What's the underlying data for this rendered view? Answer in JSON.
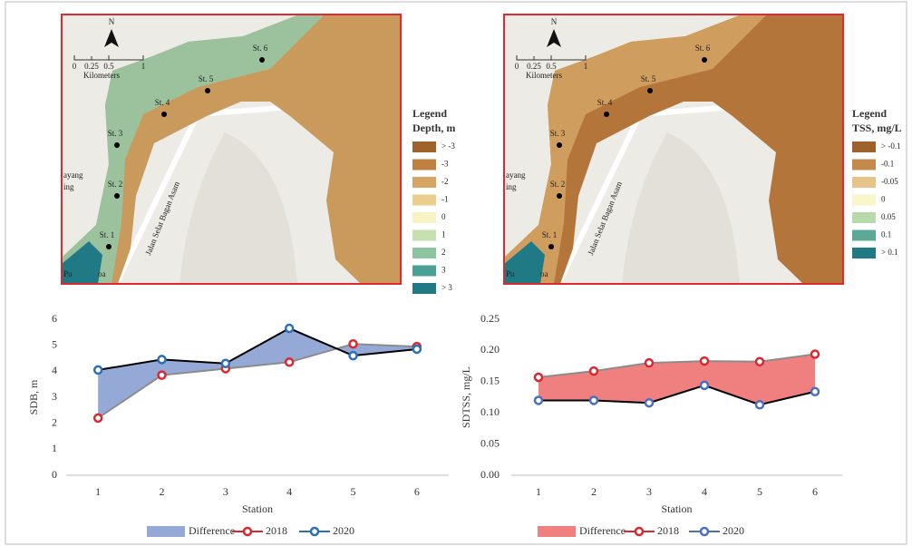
{
  "maps": [
    {
      "legend_title": "Legend",
      "legend_subtitle": "Depth, m",
      "legend_items": [
        {
          "label": "> -3",
          "color": "#a0622d"
        },
        {
          "label": "-3",
          "color": "#c0803f"
        },
        {
          "label": "-2",
          "color": "#d6a463"
        },
        {
          "label": "-1",
          "color": "#ebcd8e"
        },
        {
          "label": "0",
          "color": "#f8f3c4"
        },
        {
          "label": "1",
          "color": "#c7e0b1"
        },
        {
          "label": "2",
          "color": "#8dc4a0"
        },
        {
          "label": "3",
          "color": "#4aa193"
        },
        {
          "label": "> 3",
          "color": "#1f7a86"
        }
      ],
      "stations": [
        "St. 1",
        "St. 2",
        "St. 3",
        "St. 4",
        "St. 5",
        "St. 6"
      ],
      "north": "N",
      "scale_labels": [
        "0",
        "0.25",
        "0.5",
        "1"
      ],
      "scale_unit": "Kilometers",
      "road": "Jalan Selat Bagan Asam",
      "places": [
        "ayang",
        "ing",
        "Pu",
        "oa"
      ]
    },
    {
      "legend_title": "Legend",
      "legend_subtitle": "TSS, mg/L",
      "legend_items": [
        {
          "label": "> -0.1",
          "color": "#a0622d"
        },
        {
          "label": "-0.1",
          "color": "#c48a4c"
        },
        {
          "label": "-0.05",
          "color": "#e6c48a"
        },
        {
          "label": "0",
          "color": "#faf6cc"
        },
        {
          "label": "0.05",
          "color": "#b9d9ad"
        },
        {
          "label": "0.1",
          "color": "#5ea898"
        },
        {
          "label": "> 0.1",
          "color": "#1f7a86"
        }
      ],
      "stations": [
        "St. 1",
        "St. 2",
        "St. 3",
        "St. 4",
        "St. 5",
        "St. 6"
      ],
      "north": "N",
      "scale_labels": [
        "0",
        "0.25",
        "0.5",
        "1"
      ],
      "scale_unit": "Kilometers",
      "road": "Jalan Selat Bagan Asam",
      "places": [
        "ayang",
        "ing",
        "Pu",
        "oa"
      ]
    }
  ],
  "chart_data": [
    {
      "type": "line",
      "xlabel": "Station",
      "ylabel": "SDB, m",
      "categories": [
        1,
        2,
        3,
        4,
        5,
        6
      ],
      "ylim": [
        0,
        6
      ],
      "yticks": [
        0,
        1,
        2,
        3,
        4,
        5,
        6
      ],
      "fill_name": "Difference",
      "fill_color": "#94a9d6",
      "series": [
        {
          "name": "2018",
          "color": "#d9282f",
          "line_color": "#8c8c8c",
          "values": [
            2.2,
            3.85,
            4.1,
            4.35,
            5.05,
            4.95
          ]
        },
        {
          "name": "2020",
          "color": "#2d6fb5",
          "line_color": "#000000",
          "values": [
            4.05,
            4.45,
            4.3,
            5.65,
            4.6,
            4.85
          ]
        }
      ]
    },
    {
      "type": "line",
      "xlabel": "Station",
      "ylabel": "SDTSS, mg/L",
      "categories": [
        1,
        2,
        3,
        4,
        5,
        6
      ],
      "ylim": [
        0,
        0.25
      ],
      "yticks": [
        {
          "value": 0,
          "label": "0.00"
        },
        {
          "value": 0.05,
          "label": "0.05"
        },
        {
          "value": 0.1,
          "label": "0.10"
        },
        {
          "value": 0.15,
          "label": "0.15"
        },
        {
          "value": 0.2,
          "label": "0.20"
        },
        {
          "value": 0.25,
          "label": "0.25"
        }
      ],
      "fill_name": "Difference",
      "fill_color": "#f07f80",
      "series": [
        {
          "name": "2018",
          "color": "#d9282f",
          "line_color": "#8c8c8c",
          "values": [
            0.157,
            0.167,
            0.18,
            0.183,
            0.182,
            0.194
          ]
        },
        {
          "name": "2020",
          "color": "#4a6fc0",
          "line_color": "#000000",
          "values": [
            0.12,
            0.12,
            0.116,
            0.144,
            0.113,
            0.134
          ]
        }
      ]
    }
  ]
}
